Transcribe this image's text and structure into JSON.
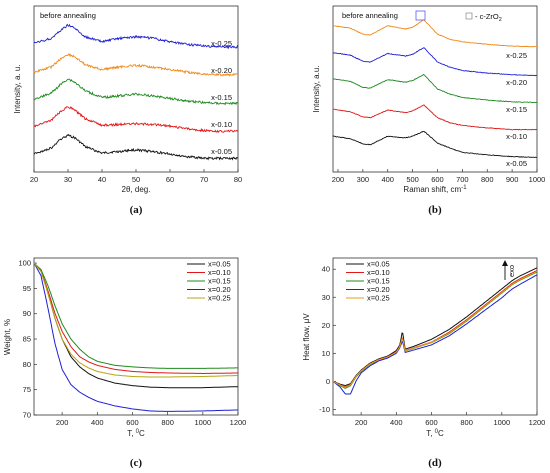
{
  "chart_data": [
    {
      "panel": "(a)",
      "type": "line",
      "annotation": "before annealing",
      "xlabel": "2θ, deg.",
      "ylabel": "Intensity, a. u.",
      "xlim": [
        20,
        80
      ],
      "xticks": [
        20,
        30,
        40,
        50,
        60,
        70,
        80
      ],
      "series": [
        {
          "name": "x-0.25",
          "color": "#1f1fd6",
          "baseline": 4,
          "x": [
            20,
            25,
            28,
            30,
            32,
            35,
            40,
            45,
            50,
            55,
            60,
            65,
            70,
            75,
            80
          ],
          "y": [
            0.5,
            0.8,
            1.3,
            1.6,
            1.4,
            0.9,
            0.6,
            0.8,
            0.9,
            0.8,
            0.6,
            0.45,
            0.35,
            0.3,
            0.3
          ]
        },
        {
          "name": "x-0.20",
          "color": "#f08a1c",
          "baseline": 3,
          "x": [
            20,
            25,
            28,
            30,
            32,
            35,
            40,
            45,
            50,
            55,
            60,
            65,
            70,
            75,
            80
          ],
          "y": [
            0.4,
            0.7,
            1.2,
            1.45,
            1.3,
            0.85,
            0.55,
            0.7,
            0.8,
            0.7,
            0.55,
            0.4,
            0.3,
            0.25,
            0.25
          ]
        },
        {
          "name": "x-0.15",
          "color": "#1e8a1e",
          "baseline": 2,
          "x": [
            20,
            25,
            28,
            30,
            32,
            35,
            40,
            45,
            50,
            55,
            60,
            65,
            70,
            75,
            80
          ],
          "y": [
            0.4,
            0.75,
            1.3,
            1.6,
            1.4,
            0.9,
            0.5,
            0.6,
            0.7,
            0.6,
            0.45,
            0.3,
            0.2,
            0.15,
            0.15
          ]
        },
        {
          "name": "x-0.10",
          "color": "#e01818",
          "baseline": 1,
          "x": [
            20,
            25,
            28,
            30,
            32,
            35,
            40,
            45,
            50,
            55,
            60,
            65,
            70,
            75,
            80
          ],
          "y": [
            0.4,
            0.75,
            1.3,
            1.55,
            1.35,
            0.85,
            0.45,
            0.5,
            0.55,
            0.5,
            0.4,
            0.25,
            0.15,
            0.1,
            0.1
          ]
        },
        {
          "name": "x-0.05",
          "color": "#111111",
          "baseline": 0,
          "x": [
            20,
            25,
            28,
            30,
            32,
            35,
            40,
            45,
            50,
            55,
            60,
            65,
            70,
            75,
            80
          ],
          "y": [
            0.35,
            0.7,
            1.25,
            1.45,
            1.3,
            0.8,
            0.4,
            0.5,
            0.6,
            0.5,
            0.35,
            0.2,
            0.1,
            0.1,
            0.1
          ]
        }
      ]
    },
    {
      "panel": "(b)",
      "type": "line",
      "annotation": "before annealing",
      "legend_label": "- c-ZrO",
      "legend_sub": "2",
      "xlabel": "Raman shift, cm",
      "xlabel_sup": "-1",
      "ylabel": "Intensity, a.u.",
      "xlim": [
        180,
        1000
      ],
      "xticks": [
        200,
        300,
        400,
        500,
        600,
        700,
        800,
        900,
        1000
      ],
      "series": [
        {
          "name": "x-0.25",
          "color": "#f08a1c",
          "baseline": 4,
          "x": [
            180,
            250,
            300,
            330,
            400,
            470,
            500,
            545,
            600,
            650,
            700,
            800,
            900,
            1000
          ],
          "y": [
            1.55,
            1.4,
            1.05,
            1.0,
            1.55,
            1.35,
            1.45,
            1.9,
            1.05,
            0.75,
            0.6,
            0.45,
            0.35,
            0.3
          ]
        },
        {
          "name": "x-0.20",
          "color": "#1f1fd6",
          "baseline": 3,
          "x": [
            180,
            250,
            300,
            330,
            400,
            470,
            500,
            545,
            600,
            650,
            700,
            800,
            900,
            1000
          ],
          "y": [
            1.55,
            1.4,
            1.05,
            1.0,
            1.5,
            1.35,
            1.45,
            1.85,
            1.0,
            0.7,
            0.5,
            0.35,
            0.25,
            0.2
          ]
        },
        {
          "name": "x-0.15",
          "color": "#1e8a1e",
          "baseline": 2,
          "x": [
            180,
            250,
            300,
            330,
            400,
            470,
            500,
            545,
            600,
            650,
            700,
            800,
            900,
            1000
          ],
          "y": [
            1.6,
            1.45,
            1.1,
            1.05,
            1.55,
            1.4,
            1.5,
            1.85,
            1.0,
            0.7,
            0.5,
            0.35,
            0.25,
            0.2
          ]
        },
        {
          "name": "x-0.10",
          "color": "#e01818",
          "baseline": 1,
          "x": [
            180,
            250,
            300,
            330,
            400,
            470,
            500,
            545,
            600,
            650,
            700,
            800,
            900,
            1000
          ],
          "y": [
            1.4,
            1.25,
            0.95,
            0.9,
            1.35,
            1.2,
            1.3,
            1.65,
            0.9,
            0.6,
            0.45,
            0.3,
            0.2,
            0.2
          ]
        },
        {
          "name": "x-0.05",
          "color": "#111111",
          "baseline": 0,
          "x": [
            180,
            250,
            300,
            330,
            400,
            470,
            500,
            545,
            600,
            650,
            700,
            800,
            900,
            1000
          ],
          "y": [
            1.4,
            1.25,
            0.95,
            0.9,
            1.4,
            1.3,
            1.4,
            1.7,
            1.0,
            0.7,
            0.45,
            0.3,
            0.2,
            0.15
          ]
        }
      ]
    },
    {
      "panel": "(c)",
      "type": "line",
      "xlabel": "T, ",
      "xlabel_sup": "0",
      "xlabel_unit": "C",
      "ylabel": "Weight, %",
      "xlim": [
        40,
        1200
      ],
      "ylim": [
        70,
        101
      ],
      "xticks": [
        200,
        400,
        600,
        800,
        1000,
        1200
      ],
      "yticks": [
        70,
        75,
        80,
        85,
        90,
        95,
        100
      ],
      "legend": "top-right",
      "series": [
        {
          "name": "x=0.05",
          "color": "#111111",
          "x": [
            40,
            80,
            120,
            160,
            200,
            250,
            300,
            350,
            400,
            500,
            600,
            700,
            800,
            1000,
            1200
          ],
          "y": [
            100,
            98.5,
            94,
            89,
            85,
            81.5,
            79.5,
            78.2,
            77.3,
            76.3,
            75.8,
            75.5,
            75.4,
            75.4,
            75.6
          ]
        },
        {
          "name": "x=0.10",
          "color": "#e01818",
          "x": [
            40,
            80,
            120,
            160,
            200,
            250,
            300,
            350,
            400,
            500,
            600,
            700,
            800,
            1000,
            1200
          ],
          "y": [
            100,
            98.5,
            94.5,
            90,
            86.5,
            83.5,
            81.5,
            80.5,
            79.8,
            79,
            78.6,
            78.4,
            78.3,
            78.2,
            78.3
          ]
        },
        {
          "name": "x=0.15",
          "color": "#1e8a1e",
          "x": [
            40,
            80,
            120,
            160,
            200,
            250,
            300,
            350,
            400,
            500,
            600,
            700,
            800,
            1000,
            1200
          ],
          "y": [
            100,
            98.7,
            95.5,
            91.5,
            88,
            85,
            83,
            81.5,
            80.6,
            79.8,
            79.5,
            79.3,
            79.2,
            79.2,
            79.3
          ]
        },
        {
          "name": "x=0.20",
          "color": "#1f1fd6",
          "x": [
            40,
            80,
            120,
            160,
            200,
            250,
            300,
            350,
            400,
            500,
            600,
            700,
            800,
            1000,
            1200
          ],
          "y": [
            100,
            97.5,
            91,
            84,
            79,
            76,
            74.5,
            73.5,
            72.7,
            71.8,
            71.2,
            70.8,
            70.7,
            70.8,
            71
          ]
        },
        {
          "name": "x=0.25",
          "color": "#b8a512",
          "x": [
            40,
            80,
            120,
            160,
            200,
            250,
            300,
            350,
            400,
            500,
            600,
            700,
            800,
            1000,
            1200
          ],
          "y": [
            100,
            98.3,
            94,
            89,
            85,
            82,
            80.3,
            79.3,
            78.6,
            77.9,
            77.6,
            77.5,
            77.5,
            77.6,
            77.8
          ]
        }
      ]
    },
    {
      "panel": "(d)",
      "type": "line",
      "xlabel": "T, ",
      "xlabel_sup": "0",
      "xlabel_unit": "C",
      "ylabel": "Heat flow, μV",
      "arrow_label": "exo",
      "xlim": [
        40,
        1200
      ],
      "ylim": [
        -12,
        44
      ],
      "xticks": [
        200,
        400,
        600,
        800,
        1000,
        1200
      ],
      "yticks": [
        -10,
        0,
        10,
        20,
        30,
        40
      ],
      "legend": "top-left",
      "series": [
        {
          "name": "x=0.05",
          "color": "#111111",
          "x": [
            40,
            80,
            110,
            140,
            170,
            200,
            250,
            300,
            350,
            400,
            420,
            435,
            450,
            500,
            600,
            700,
            800,
            900,
            1000,
            1040,
            1060,
            1100,
            1200
          ],
          "y": [
            0,
            -1,
            -1.5,
            -0.8,
            2,
            4,
            6.5,
            8,
            9,
            11,
            13,
            18,
            11.5,
            12.5,
            15,
            18.5,
            23,
            28,
            33,
            35,
            36,
            37.5,
            40.5
          ]
        },
        {
          "name": "x=0.10",
          "color": "#e01818",
          "x": [
            40,
            80,
            110,
            140,
            170,
            200,
            250,
            300,
            350,
            400,
            420,
            435,
            450,
            500,
            600,
            700,
            800,
            900,
            1000,
            1040,
            1060,
            1100,
            1200
          ],
          "y": [
            0,
            -1.2,
            -2,
            -1,
            1.8,
            3.8,
            6.3,
            7.8,
            8.8,
            10.5,
            12.5,
            16,
            11,
            12,
            14,
            17.5,
            22,
            27,
            32,
            34,
            35,
            36.5,
            39.5
          ]
        },
        {
          "name": "x=0.15",
          "color": "#1e8a1e",
          "x": [
            40,
            80,
            110,
            140,
            170,
            200,
            250,
            300,
            350,
            400,
            420,
            435,
            450,
            500,
            600,
            700,
            800,
            900,
            1000,
            1040,
            1060,
            1100,
            1200
          ],
          "y": [
            0,
            -1.5,
            -2.5,
            -1.5,
            1.5,
            3.5,
            6,
            7.5,
            8.5,
            10.3,
            12.3,
            15.5,
            10.8,
            11.8,
            13.8,
            17,
            21.5,
            26.5,
            31.5,
            33.5,
            34.5,
            36,
            39
          ]
        },
        {
          "name": "x=0.20",
          "color": "#1f1fd6",
          "x": [
            40,
            80,
            110,
            140,
            170,
            200,
            250,
            300,
            350,
            400,
            420,
            435,
            450,
            500,
            600,
            700,
            800,
            900,
            1000,
            1040,
            1060,
            1100,
            1200
          ],
          "y": [
            0,
            -2,
            -4.5,
            -4.5,
            0,
            3,
            5.5,
            7.3,
            8.3,
            10,
            12,
            14.5,
            10.3,
            11.2,
            13,
            16.2,
            20.5,
            25.2,
            29.8,
            32,
            33,
            34.5,
            38
          ]
        },
        {
          "name": "x=0.25",
          "color": "#e3a21a",
          "x": [
            40,
            80,
            110,
            140,
            170,
            200,
            250,
            300,
            350,
            400,
            420,
            435,
            450,
            500,
            600,
            700,
            800,
            900,
            1000,
            1040,
            1060,
            1100,
            1200
          ],
          "y": [
            0,
            -1.3,
            -2.2,
            -1.2,
            1.7,
            3.7,
            6.2,
            7.7,
            8.7,
            10.4,
            12.4,
            15.8,
            10.9,
            11.9,
            13.9,
            17.2,
            21.7,
            26.7,
            31.7,
            33.7,
            34.7,
            36.2,
            39.2
          ]
        }
      ]
    }
  ],
  "captions": [
    "(a)",
    "(b)",
    "(c)",
    "(d)"
  ]
}
